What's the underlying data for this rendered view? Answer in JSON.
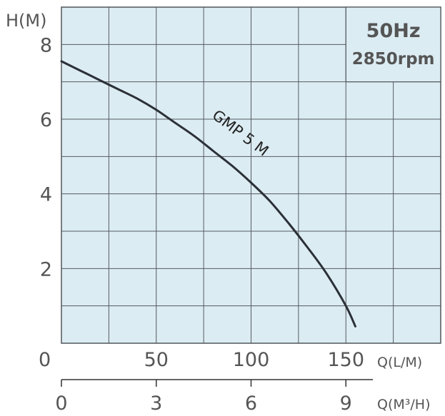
{
  "chart_data": {
    "type": "line",
    "ylabel": "H(M)",
    "xlabel": "Q(L/M)",
    "x2label": "Q(M³/H)",
    "y_ticks": [
      2,
      4,
      6,
      8
    ],
    "x_ticks": [
      0,
      50,
      100,
      150
    ],
    "x2_ticks": [
      0,
      3,
      6,
      9
    ],
    "xlim": [
      0,
      200
    ],
    "ylim": [
      0,
      9
    ],
    "grid": true,
    "info_box": {
      "line1": "50Hz",
      "line2": "2850rpm"
    },
    "series": [
      {
        "name": "GMP 5 M",
        "x": [
          0,
          10,
          20,
          30,
          40,
          50,
          60,
          70,
          80,
          90,
          100,
          110,
          120,
          130,
          140,
          150,
          155
        ],
        "y": [
          7.55,
          7.3,
          7.05,
          6.8,
          6.55,
          6.25,
          5.9,
          5.55,
          5.15,
          4.75,
          4.3,
          3.8,
          3.2,
          2.55,
          1.85,
          1.0,
          0.45
        ]
      }
    ],
    "colors": {
      "plot_bg": "#dcecf3",
      "curve": "#2b3036",
      "grid": "#555b60",
      "text": "#555555"
    }
  }
}
